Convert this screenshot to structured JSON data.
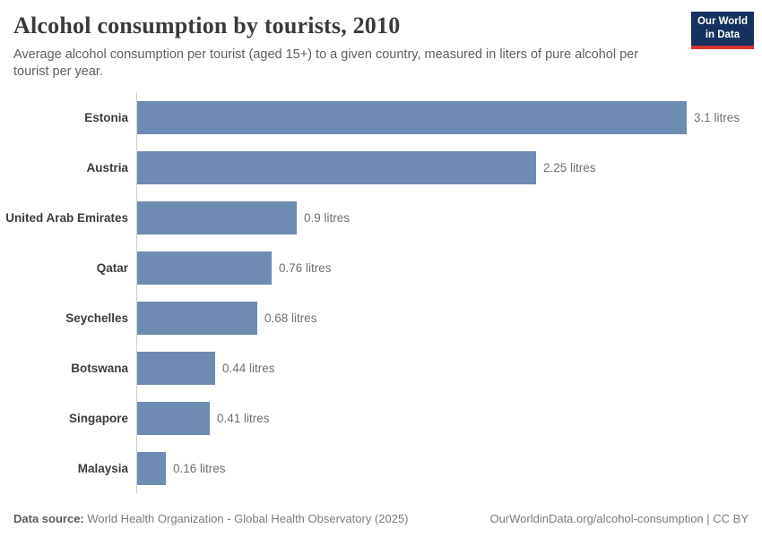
{
  "header": {
    "title": "Alcohol consumption by tourists, 2010",
    "subtitle": "Average alcohol consumption per tourist (aged 15+) to a given country, measured in liters of pure alcohol per tourist per year.",
    "logo_line1": "Our World",
    "logo_line2": "in Data"
  },
  "chart_data": {
    "type": "bar",
    "orientation": "horizontal",
    "title": "Alcohol consumption by tourists, 2010",
    "categories": [
      "Estonia",
      "Austria",
      "United Arab Emirates",
      "Qatar",
      "Seychelles",
      "Botswana",
      "Singapore",
      "Malaysia"
    ],
    "values": [
      3.1,
      2.25,
      0.9,
      0.76,
      0.68,
      0.44,
      0.41,
      0.16
    ],
    "value_labels": [
      "3.1 litres",
      "2.25 litres",
      "0.9 litres",
      "0.76 litres",
      "0.68 litres",
      "0.44 litres",
      "0.41 litres",
      "0.16 litres"
    ],
    "unit": "litres",
    "xlabel": "",
    "ylabel": "",
    "xlim": [
      0,
      3.1
    ],
    "grid": false,
    "legend": false,
    "bar_color": "#6e8bb2",
    "axis_line_color": "#d0d0d0"
  },
  "footer": {
    "datasource_label": "Data source:",
    "datasource_text": " World Health Organization - Global Health Observatory (2025)",
    "link_text": "OurWorldinData.org/alcohol-consumption | CC BY"
  },
  "colors": {
    "bar": "#6e8bb2",
    "logo_background": "#15315e",
    "logo_accent": "#d7352e",
    "title_text": "#3a3a3a",
    "subtitle_text": "#5f5f5f",
    "value_text": "#6f6f6f"
  }
}
